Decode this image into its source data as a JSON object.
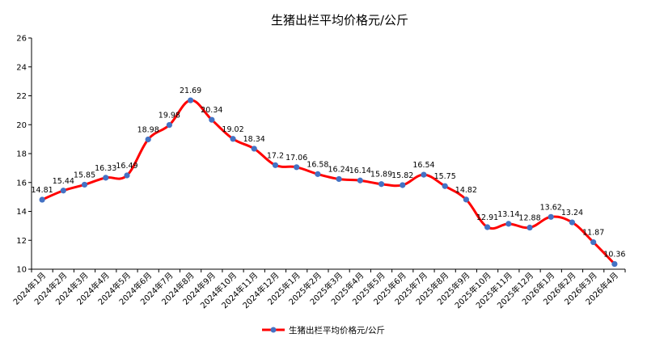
{
  "chart_data": {
    "type": "line",
    "title": "生猪出栏平均价格元/公斤",
    "xlabel": "",
    "ylabel": "",
    "ylim": [
      10,
      26
    ],
    "yticks": [
      10,
      12,
      14,
      16,
      18,
      20,
      22,
      24,
      26
    ],
    "grid": false,
    "legend_position": "bottom",
    "categories": [
      "2024年1月",
      "2024年2月",
      "2024年3月",
      "2024年4月",
      "2024年5月",
      "2024年6月",
      "2024年7月",
      "2024年8月",
      "2024年9月",
      "2024年10月",
      "2024年11月",
      "2024年12月",
      "2025年1月",
      "2025年2月",
      "2025年3月",
      "2025年4月",
      "2025年5月",
      "2025年6月",
      "2025年7月",
      "2025年8月",
      "2025年9月",
      "2025年10月",
      "2025年11月",
      "2025年12月",
      "2026年1月",
      "2026年2月",
      "2026年3月",
      "2026年4月"
    ],
    "series": [
      {
        "name": "生猪出栏平均价格元/公斤",
        "line_color": "#ff0000",
        "marker_color": "#4472c4",
        "values": [
          14.81,
          15.44,
          15.85,
          16.33,
          16.49,
          18.98,
          19.98,
          21.69,
          20.34,
          19.02,
          18.34,
          17.2,
          17.06,
          16.58,
          16.24,
          16.14,
          15.89,
          15.82,
          16.54,
          15.75,
          14.82,
          12.91,
          13.14,
          12.88,
          13.62,
          13.24,
          11.87,
          10.36
        ],
        "labels": [
          "14.81",
          "15.44",
          "15.85",
          "16.33",
          "16.49",
          "18.98",
          "19.98",
          "21.69",
          "20.34",
          "19.02",
          "18.34",
          "17.2",
          "17.06",
          "16.58",
          "16.24",
          "16.14",
          "15.89",
          "15.82",
          "16.54",
          "15.75",
          "14.82",
          "12.91",
          "13.14",
          "12.88",
          "13.62",
          "13.24",
          "11.87",
          "10.36"
        ]
      }
    ]
  }
}
